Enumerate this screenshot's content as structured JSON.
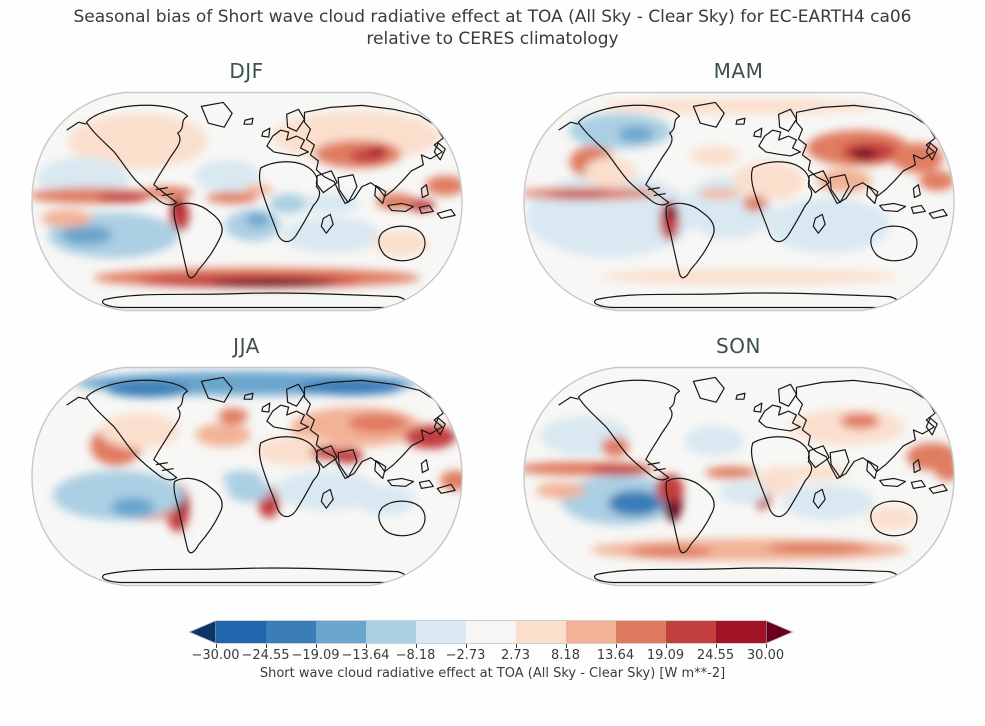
{
  "figure": {
    "title_line1": "Seasonal bias of Short wave cloud radiative effect at TOA (All Sky - Clear Sky) for EC-EARTH4 ca06",
    "title_line2": "relative to CERES climatology"
  },
  "style": {
    "title_color": "#3b3b3b",
    "panel_title_color": "#3a514e",
    "ocean_base": "#f7f7f5",
    "coastline_color": "#161616",
    "map_edge_color": "#c8c8c8"
  },
  "chart_data": {
    "type": "heatmap",
    "projection": "Robinson",
    "title": "Seasonal bias of Short wave cloud radiative effect at TOA (All Sky - Clear Sky) for EC-EARTH4 ca06 relative to CERES climatology",
    "variable": "Short wave cloud radiative effect at TOA (All Sky - Clear Sky)",
    "units": "W m**-2",
    "model": "EC-EARTH4 ca06",
    "reference": "CERES climatology",
    "colorbar": {
      "label": "Short wave cloud radiative effect at TOA (All Sky - Clear Sky) [W m**-2]",
      "ticks": [
        "−30.00",
        "−24.55",
        "−19.09",
        "−13.64",
        "−8.18",
        "−2.73",
        "2.73",
        "8.18",
        "13.64",
        "19.09",
        "24.55",
        "30.00"
      ],
      "tick_values": [
        -30.0,
        -24.55,
        -19.09,
        -13.64,
        -8.18,
        -2.73,
        2.73,
        8.18,
        13.64,
        19.09,
        24.55,
        30.0
      ],
      "segment_colors": [
        "#2166ac",
        "#3a7db8",
        "#6aa5cd",
        "#abcfe3",
        "#d9e8f1",
        "#f7f6f5",
        "#fbdfcd",
        "#f2b297",
        "#e07b60",
        "#c33e3e",
        "#a21328"
      ],
      "under_color": "#0b3566",
      "over_color": "#67001f",
      "extend": "both"
    },
    "panels": [
      {
        "label": "DJF",
        "features": [
          [
            110,
            55,
            70,
            28,
            4
          ],
          [
            330,
            50,
            85,
            25,
            4
          ],
          [
            332,
            68,
            44,
            14,
            15
          ],
          [
            342,
            70,
            18,
            7,
            22
          ],
          [
            352,
            64,
            10,
            4,
            27
          ],
          [
            200,
            90,
            33,
            16,
            -6
          ],
          [
            55,
            93,
            46,
            22,
            -6
          ],
          [
            62,
            110,
            62,
            8,
            15
          ],
          [
            95,
            112,
            26,
            5,
            22
          ],
          [
            140,
            107,
            26,
            6,
            15
          ],
          [
            205,
            112,
            26,
            6,
            15
          ],
          [
            232,
            104,
            14,
            5,
            9
          ],
          [
            152,
            130,
            10,
            16,
            22
          ],
          [
            150,
            120,
            6,
            8,
            27
          ],
          [
            85,
            150,
            66,
            23,
            -9
          ],
          [
            58,
            150,
            26,
            10,
            -15
          ],
          [
            226,
            140,
            28,
            16,
            -9
          ],
          [
            231,
            134,
            12,
            7,
            -15
          ],
          [
            305,
            150,
            50,
            18,
            -6
          ],
          [
            262,
            118,
            20,
            10,
            -9
          ],
          [
            305,
            118,
            28,
            10,
            -6
          ],
          [
            375,
            158,
            28,
            13,
            4
          ],
          [
            38,
            133,
            26,
            9,
            10
          ],
          [
            230,
            193,
            165,
            10,
            15
          ],
          [
            222,
            196,
            112,
            6,
            22
          ],
          [
            245,
            198,
            62,
            4,
            31
          ],
          [
            420,
            100,
            20,
            10,
            15
          ],
          [
            370,
            116,
            20,
            8,
            15
          ],
          [
            396,
            120,
            14,
            6,
            22
          ]
        ]
      },
      {
        "label": "MAM",
        "features": [
          [
            90,
            130,
            85,
            42,
            -5
          ],
          [
            210,
            122,
            45,
            32,
            -5
          ],
          [
            310,
            140,
            62,
            28,
            -5
          ],
          [
            100,
            45,
            52,
            18,
            -9
          ],
          [
            116,
            48,
            18,
            8,
            -15
          ],
          [
            72,
            76,
            23,
            16,
            15
          ],
          [
            90,
            86,
            26,
            15,
            8
          ],
          [
            340,
            62,
            52,
            18,
            15
          ],
          [
            352,
            66,
            28,
            10,
            22
          ],
          [
            346,
            68,
            13,
            5,
            33
          ],
          [
            400,
            72,
            26,
            15,
            15
          ],
          [
            420,
            95,
            18,
            10,
            15
          ],
          [
            70,
            108,
            72,
            6,
            15
          ],
          [
            58,
            110,
            30,
            4,
            22
          ],
          [
            150,
            135,
            10,
            20,
            22
          ],
          [
            152,
            127,
            5,
            8,
            33
          ],
          [
            200,
            108,
            20,
            5,
            9
          ],
          [
            250,
            95,
            36,
            20,
            5
          ],
          [
            236,
            118,
            12,
            8,
            15
          ],
          [
            326,
            95,
            28,
            12,
            11
          ],
          [
            220,
            20,
            140,
            8,
            5
          ],
          [
            230,
            192,
            150,
            8,
            7
          ],
          [
            195,
            70,
            25,
            10,
            5
          ]
        ]
      },
      {
        "label": "JJA",
        "features": [
          [
            220,
            22,
            172,
            12,
            -15
          ],
          [
            120,
            28,
            42,
            8,
            -22
          ],
          [
            325,
            26,
            52,
            8,
            -22
          ],
          [
            330,
            66,
            66,
            20,
            9
          ],
          [
            352,
            62,
            30,
            10,
            15
          ],
          [
            405,
            76,
            26,
            12,
            22
          ],
          [
            92,
            80,
            13,
            16,
            26
          ],
          [
            88,
            85,
            26,
            20,
            15
          ],
          [
            112,
            70,
            40,
            18,
            7
          ],
          [
            196,
            74,
            28,
            12,
            11
          ],
          [
            206,
            55,
            15,
            8,
            15
          ],
          [
            270,
            90,
            42,
            15,
            7
          ],
          [
            300,
            92,
            16,
            7,
            22
          ],
          [
            322,
            95,
            15,
            8,
            22
          ],
          [
            150,
            148,
            12,
            24,
            22
          ],
          [
            152,
            140,
            6,
            12,
            33
          ],
          [
            115,
            152,
            32,
            8,
            15
          ],
          [
            242,
            142,
            11,
            16,
            22
          ],
          [
            215,
            118,
            20,
            8,
            -9
          ],
          [
            90,
            135,
            66,
            25,
            -9
          ],
          [
            105,
            147,
            22,
            10,
            -19
          ],
          [
            222,
            130,
            22,
            12,
            -9
          ],
          [
            300,
            130,
            52,
            20,
            -6
          ],
          [
            360,
            140,
            30,
            15,
            -6
          ],
          [
            430,
            120,
            15,
            10,
            15
          ]
        ]
      },
      {
        "label": "SON",
        "features": [
          [
            65,
            108,
            70,
            7,
            15
          ],
          [
            100,
            110,
            30,
            5,
            22
          ],
          [
            212,
            112,
            26,
            6,
            15
          ],
          [
            300,
            112,
            30,
            8,
            7
          ],
          [
            100,
            140,
            60,
            25,
            -9
          ],
          [
            115,
            143,
            27,
            13,
            -22
          ],
          [
            153,
            138,
            10,
            24,
            35
          ],
          [
            150,
            128,
            14,
            14,
            22
          ],
          [
            243,
            133,
            10,
            16,
            22
          ],
          [
            260,
            120,
            20,
            14,
            4
          ],
          [
            230,
            190,
            160,
            11,
            11
          ],
          [
            152,
            192,
            42,
            6,
            18
          ],
          [
            300,
            188,
            52,
            6,
            18
          ],
          [
            330,
            66,
            58,
            18,
            7
          ],
          [
            342,
            60,
            20,
            8,
            18
          ],
          [
            415,
            96,
            26,
            14,
            15
          ],
          [
            432,
            112,
            14,
            8,
            15
          ],
          [
            65,
            75,
            45,
            20,
            -6
          ],
          [
            95,
            86,
            14,
            10,
            15
          ],
          [
            195,
            80,
            30,
            15,
            -5
          ],
          [
            375,
            158,
            25,
            12,
            5
          ],
          [
            225,
            132,
            25,
            12,
            -7
          ],
          [
            310,
            142,
            46,
            18,
            -6
          ],
          [
            40,
            130,
            25,
            8,
            11
          ]
        ]
      }
    ]
  }
}
